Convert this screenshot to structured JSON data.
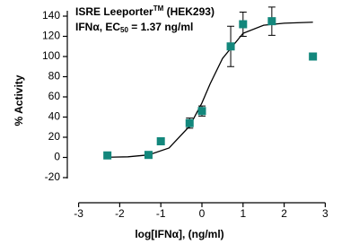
{
  "chart_data": {
    "type": "scatter",
    "title_parts": [
      "ISRE Leeporter",
      "TM",
      " (HEK293)"
    ],
    "subtitle_parts": [
      "IFNα, EC",
      "50",
      " = 1.37 ng/ml"
    ],
    "subtitle_color": "#e0192b",
    "x_label": "log[IFNα], (ng/ml)",
    "y_label": "% Activity",
    "x": [
      -2.3,
      -1.3,
      -1.0,
      -0.3,
      0.0,
      0.7,
      1.0,
      1.7,
      2.7
    ],
    "values": [
      2,
      2.5,
      16,
      34,
      46,
      110,
      132,
      135,
      100
    ],
    "errors": [
      null,
      null,
      2,
      5,
      5,
      20,
      12,
      14,
      null
    ],
    "color": "#13877c",
    "curve": {
      "x": [
        -2.3,
        -1.8,
        -1.3,
        -0.8,
        -0.3,
        0.0,
        0.2,
        0.5,
        1.0,
        1.5,
        2.0,
        2.7
      ],
      "values": [
        0.2,
        0.6,
        2.5,
        9.4,
        31,
        54,
        73,
        98,
        123,
        131,
        133,
        134
      ],
      "color": "#000000"
    },
    "xlim": [
      -3,
      3
    ],
    "xticks": [
      -3,
      -2,
      -1,
      0,
      1,
      2,
      3
    ],
    "ylim": [
      -20,
      140
    ],
    "yticks": [
      -20,
      0,
      20,
      40,
      60,
      80,
      100,
      120,
      140
    ]
  }
}
